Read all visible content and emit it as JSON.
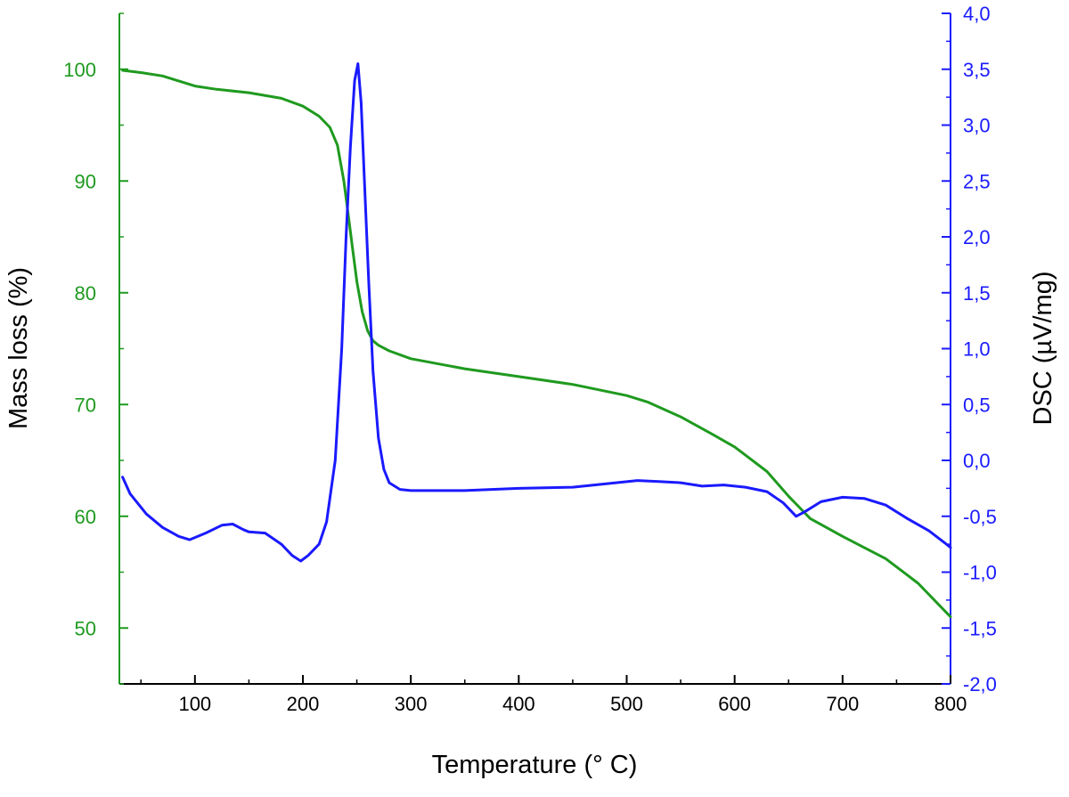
{
  "chart_data": {
    "type": "line",
    "title": "",
    "xlabel": "Temperature (° C)",
    "ylabel_left": "Mass loss (%)",
    "ylabel_right": "DSC (µV/mg)",
    "xlim": [
      30,
      800
    ],
    "ylim_left": [
      45,
      105
    ],
    "ylim_right": [
      -2.0,
      4.0
    ],
    "x_ticks": [
      100,
      200,
      300,
      400,
      500,
      600,
      700,
      800
    ],
    "x_tick_labels": [
      "100",
      "200",
      "300",
      "400",
      "500",
      "600",
      "700",
      "800"
    ],
    "y_left_ticks": [
      50,
      60,
      70,
      80,
      90,
      100
    ],
    "y_left_tick_labels": [
      "50",
      "60",
      "70",
      "80",
      "90",
      "100"
    ],
    "y_right_ticks": [
      -2.0,
      -1.5,
      -1.0,
      -0.5,
      0.0,
      0.5,
      1.0,
      1.5,
      2.0,
      2.5,
      3.0,
      3.5,
      4.0
    ],
    "y_right_tick_labels": [
      "-2,0",
      "-1,5",
      "-1,0",
      "-0,5",
      "0,0",
      "0,5",
      "1,0",
      "1,5",
      "2,0",
      "2,5",
      "3,0",
      "3,5",
      "4,0"
    ],
    "grid": false,
    "colors": {
      "mass": "#1f9a1f",
      "dsc": "#1a1aff",
      "axis": "#000000"
    },
    "series": [
      {
        "axis": "left",
        "x": [
          33,
          50,
          70,
          90,
          100,
          120,
          150,
          180,
          200,
          215,
          225,
          232,
          238,
          242,
          246,
          250,
          255,
          260,
          265,
          270,
          280,
          300,
          350,
          400,
          450,
          500,
          520,
          550,
          580,
          600,
          630,
          650,
          670,
          700,
          740,
          770,
          800
        ],
        "values": [
          99.9,
          99.7,
          99.4,
          98.8,
          98.5,
          98.2,
          97.9,
          97.4,
          96.7,
          95.8,
          94.8,
          93.2,
          90.0,
          87.0,
          84.0,
          81.0,
          78.3,
          76.6,
          75.7,
          75.3,
          74.8,
          74.1,
          73.2,
          72.5,
          71.8,
          70.8,
          70.2,
          68.9,
          67.3,
          66.2,
          64.0,
          61.8,
          59.8,
          58.2,
          56.2,
          54.0,
          51.0
        ]
      },
      {
        "axis": "right",
        "x": [
          33,
          40,
          55,
          70,
          85,
          95,
          110,
          125,
          135,
          145,
          150,
          165,
          180,
          190,
          198,
          205,
          215,
          222,
          230,
          236,
          240,
          244,
          248,
          251,
          254,
          257,
          261,
          265,
          270,
          275,
          280,
          290,
          300,
          350,
          400,
          450,
          480,
          510,
          530,
          550,
          570,
          590,
          610,
          630,
          645,
          657,
          665,
          680,
          700,
          720,
          740,
          760,
          780,
          795,
          800
        ],
        "values": [
          -0.15,
          -0.3,
          -0.48,
          -0.6,
          -0.68,
          -0.71,
          -0.65,
          -0.58,
          -0.57,
          -0.62,
          -0.64,
          -0.65,
          -0.75,
          -0.85,
          -0.9,
          -0.85,
          -0.75,
          -0.55,
          0.0,
          1.0,
          2.0,
          2.8,
          3.4,
          3.55,
          3.2,
          2.5,
          1.6,
          0.8,
          0.2,
          -0.08,
          -0.2,
          -0.26,
          -0.27,
          -0.27,
          -0.25,
          -0.24,
          -0.21,
          -0.18,
          -0.19,
          -0.2,
          -0.23,
          -0.22,
          -0.24,
          -0.28,
          -0.38,
          -0.5,
          -0.46,
          -0.37,
          -0.33,
          -0.34,
          -0.4,
          -0.52,
          -0.63,
          -0.74,
          -0.78
        ]
      }
    ]
  }
}
